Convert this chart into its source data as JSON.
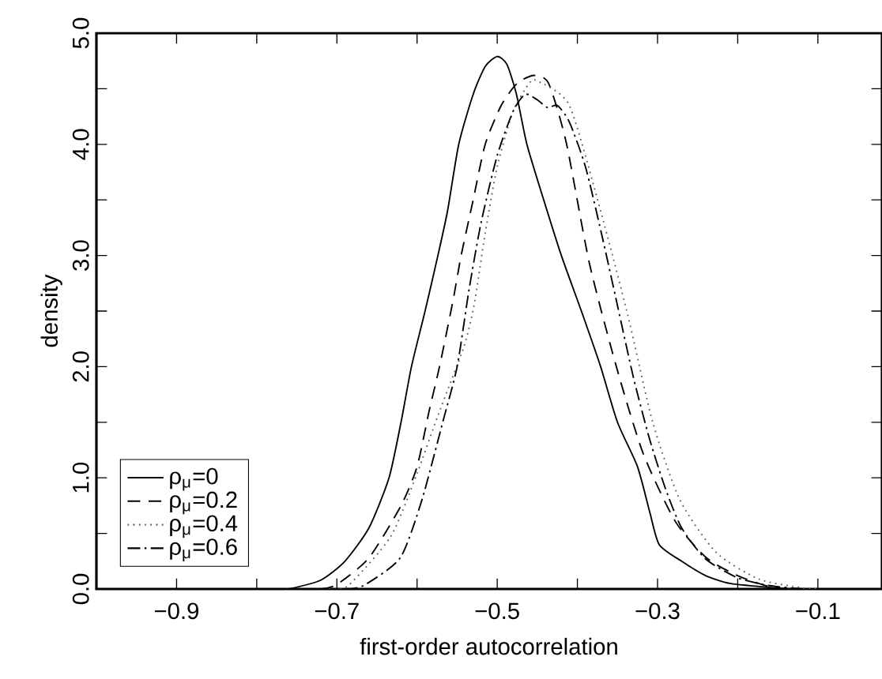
{
  "chart_data": {
    "type": "line",
    "xlabel": "first-order autocorrelation",
    "ylabel": "density",
    "xlim": [
      -1.0,
      -0.02
    ],
    "ylim": [
      0,
      5
    ],
    "xticks": [
      {
        "value": -1.0,
        "label": null
      },
      {
        "value": -0.9,
        "label": "−0.9"
      },
      {
        "value": -0.8,
        "label": null
      },
      {
        "value": -0.7,
        "label": "−0.7"
      },
      {
        "value": -0.6,
        "label": null
      },
      {
        "value": -0.5,
        "label": "−0.5"
      },
      {
        "value": -0.4,
        "label": null
      },
      {
        "value": -0.3,
        "label": "−0.3"
      },
      {
        "value": -0.2,
        "label": null
      },
      {
        "value": -0.1,
        "label": "−0.1"
      }
    ],
    "yticks": [
      {
        "value": 0,
        "label": "0.0"
      },
      {
        "value": 0.5,
        "label": null
      },
      {
        "value": 1,
        "label": "1.0"
      },
      {
        "value": 1.5,
        "label": null
      },
      {
        "value": 2,
        "label": "2.0"
      },
      {
        "value": 2.5,
        "label": null
      },
      {
        "value": 3,
        "label": "3.0"
      },
      {
        "value": 3.5,
        "label": null
      },
      {
        "value": 4,
        "label": "4.0"
      },
      {
        "value": 4.5,
        "label": null
      },
      {
        "value": 5,
        "label": "5.0"
      }
    ],
    "grid": false,
    "legend": "bottom left",
    "marker": "none",
    "series": [
      {
        "name": "ρ$_{μ}$=0",
        "color": "#000000",
        "line_style": "solid",
        "x": [
          -0.76,
          -0.72,
          -0.69,
          -0.66,
          -0.635,
          -0.62,
          -0.607,
          -0.59,
          -0.574,
          -0.562,
          -0.548,
          -0.53,
          -0.515,
          -0.5,
          -0.488,
          -0.476,
          -0.463,
          -0.442,
          -0.42,
          -0.395,
          -0.371,
          -0.35,
          -0.325,
          -0.31,
          -0.298,
          -0.27,
          -0.24,
          -0.21,
          -0.17,
          -0.14
        ],
        "values": [
          0,
          0.08,
          0.25,
          0.55,
          1.0,
          1.5,
          2.0,
          2.5,
          3.0,
          3.4,
          4.0,
          4.45,
          4.7,
          4.79,
          4.72,
          4.45,
          4.0,
          3.5,
          3.0,
          2.5,
          2.0,
          1.5,
          1.1,
          0.7,
          0.4,
          0.25,
          0.12,
          0.05,
          0.02,
          0
        ]
      },
      {
        "name": "ρ$_{μ}$=0.2",
        "color": "#000000",
        "line_style": "dashed",
        "x": [
          -0.72,
          -0.7,
          -0.66,
          -0.62,
          -0.6,
          -0.585,
          -0.572,
          -0.555,
          -0.545,
          -0.53,
          -0.515,
          -0.495,
          -0.475,
          -0.454,
          -0.436,
          -0.414,
          -0.385,
          -0.351,
          -0.318,
          -0.278,
          -0.239,
          -0.2,
          -0.16,
          -0.13
        ],
        "values": [
          0,
          0.04,
          0.28,
          0.75,
          1.1,
          1.6,
          2.0,
          2.6,
          3.0,
          3.5,
          4.0,
          4.35,
          4.55,
          4.62,
          4.55,
          4.02,
          2.93,
          1.99,
          1.22,
          0.61,
          0.28,
          0.12,
          0.02,
          0
        ]
      },
      {
        "name": "ρ$_{μ}$=0.4",
        "color": "#606060",
        "line_style": "dotted",
        "x": [
          -0.71,
          -0.686,
          -0.633,
          -0.6,
          -0.574,
          -0.542,
          -0.529,
          -0.515,
          -0.5,
          -0.48,
          -0.46,
          -0.45,
          -0.41,
          -0.371,
          -0.337,
          -0.306,
          -0.272,
          -0.227,
          -0.174,
          -0.12,
          -0.1
        ],
        "values": [
          0,
          0.03,
          0.47,
          1.04,
          1.56,
          2.17,
          2.55,
          3.2,
          3.8,
          4.3,
          4.55,
          4.57,
          4.35,
          3.4,
          2.46,
          1.5,
          0.8,
          0.33,
          0.09,
          0.01,
          0
        ]
      },
      {
        "name": "ρ$_{μ}$=0.6",
        "color": "#000000",
        "line_style": "dashdot",
        "x": [
          -0.69,
          -0.667,
          -0.621,
          -0.594,
          -0.568,
          -0.55,
          -0.535,
          -0.52,
          -0.5,
          -0.48,
          -0.465,
          -0.45,
          -0.437,
          -0.425,
          -0.41,
          -0.39,
          -0.37,
          -0.35,
          -0.33,
          -0.31,
          -0.29,
          -0.27,
          -0.24,
          -0.2,
          -0.16,
          -0.12
        ],
        "values": [
          0,
          0.03,
          0.28,
          0.8,
          1.5,
          2.0,
          2.7,
          3.3,
          3.9,
          4.3,
          4.45,
          4.4,
          4.33,
          4.35,
          4.2,
          3.8,
          3.2,
          2.55,
          1.9,
          1.35,
          0.9,
          0.55,
          0.27,
          0.1,
          0.03,
          0
        ]
      }
    ]
  }
}
